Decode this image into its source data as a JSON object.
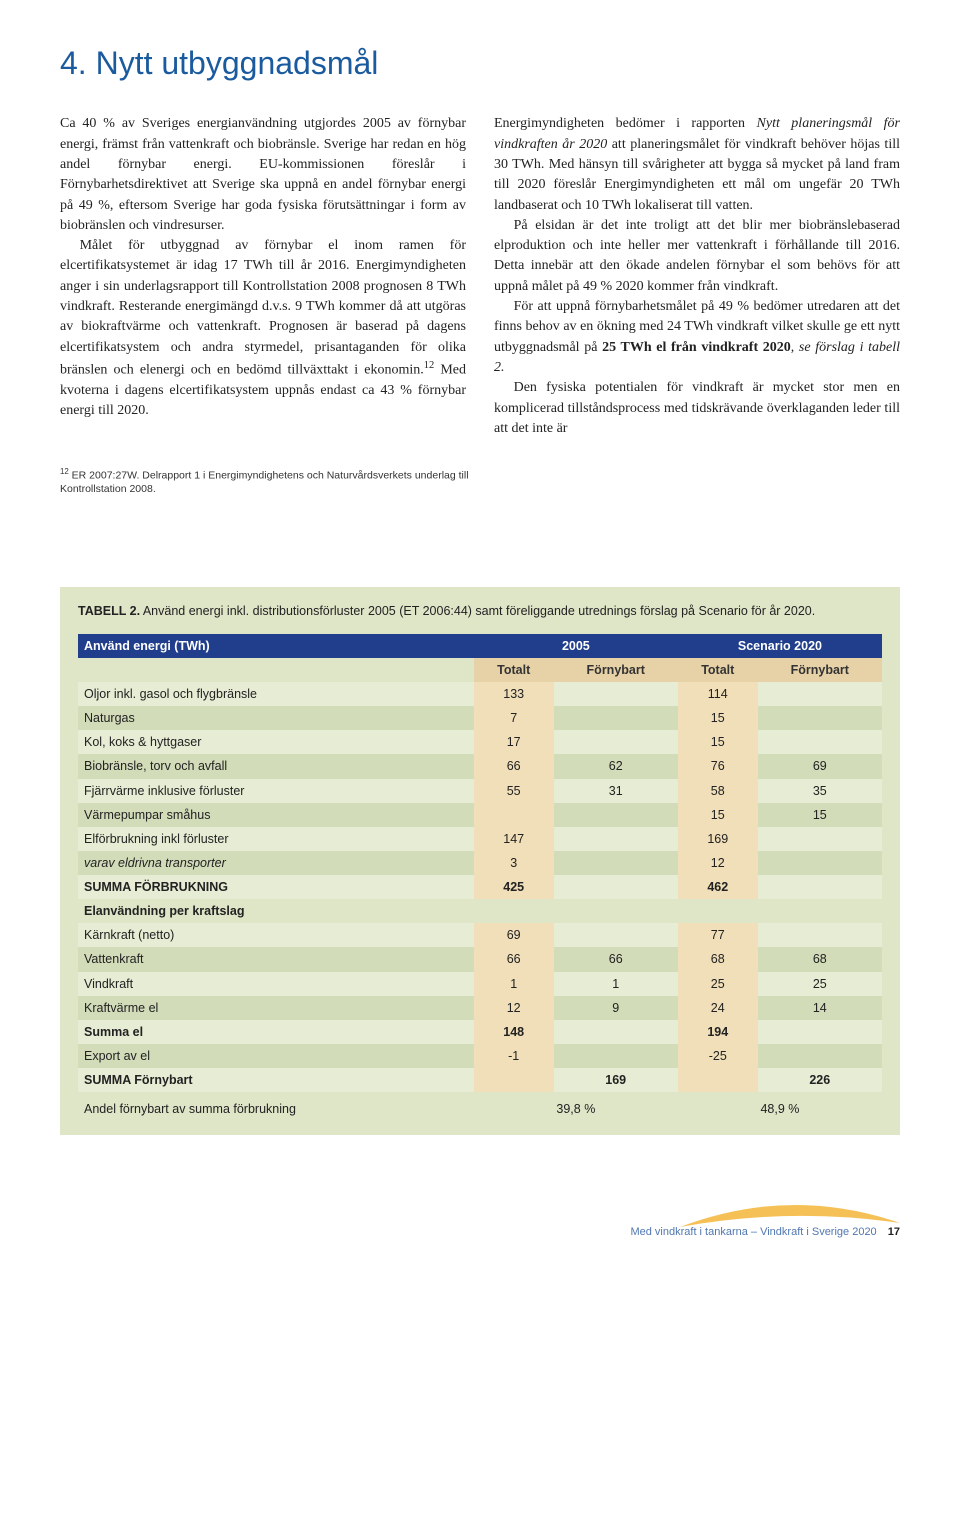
{
  "title": "4. Nytt utbyggnadsmål",
  "left_col": {
    "p1a": "Ca 40 % av Sveriges energianvändning utgjordes 2005 av förnybar energi, främst från vattenkraft och biobränsle. Sverige har redan en hög andel förnybar energi. EU-kommissionen föreslår i Förnybarhetsdirektivet att Sverige ska uppnå en andel förnybar energi på 49 %, eftersom Sverige har goda fysiska förutsättningar i form av biobränslen och vindresurser.",
    "p1b": "Målet för utbyggnad av förnybar el inom ramen för elcertifikatsystemet är idag 17 TWh till år 2016. Energimyndigheten anger i sin underlagsrapport till Kontrollstation 2008 prognosen 8 TWh vindkraft. Resterande energimängd d.v.s. 9 TWh kommer då att utgöras av biokraftvärme och vattenkraft. Prognosen är baserad på dagens elcertifikatsystem och andra styrmedel, prisantaganden för olika bränslen och elenergi och en bedömd tillväxttakt i ekonomin.",
    "p1c": " Med kvoterna i dagens elcertifikatsystem uppnås endast ca 43 % förnybar energi till 2020."
  },
  "right_col": {
    "p1a": "Energimyndigheten bedömer i rapporten ",
    "p1i": "Nytt planeringsmål för vindkraften år 2020",
    "p1b": " att planeringsmålet för vindkraft behöver höjas till 30 TWh. Med hänsyn till svårigheter att bygga så mycket på land fram till 2020 föreslår Energimyndigheten ett mål om ungefär 20 TWh landbaserat och 10 TWh lokaliserat till vatten.",
    "p2": "På elsidan är det inte troligt att det blir mer biobränslebaserad elproduktion och inte heller mer vattenkraft i förhållande till 2016. Detta innebär att den ökade andelen förnybar el som behövs för att uppnå målet på 49 % 2020 kommer från vindkraft.",
    "p3a": "För att uppnå förnybarhetsmålet på 49 % bedömer utredaren att det finns behov av en ökning med 24 TWh vindkraft vilket skulle ge ett nytt utbyggnadsmål på ",
    "p3b": "25 TWh el från vindkraft 2020",
    "p3c": ", ",
    "p3i": "se förslag i tabell 2.",
    "p4": "Den fysiska potentialen för vindkraft är mycket stor men en komplicerad tillståndsprocess med tidskrävande överklaganden leder till att det inte är"
  },
  "footnote": {
    "num": "12",
    "text": " ER 2007:27W. Delrapport 1 i Energimyndighetens och Naturvårdsverkets underlag till Kontrollstation 2008."
  },
  "table": {
    "caption_label": "TABELL 2.",
    "caption_text": " Använd energi inkl. distributionsförluster 2005 (ET 2006:44) samt föreliggande utrednings förslag på Scenario för år 2020.",
    "header_rowlabel": "Använd energi (TWh)",
    "header_year1": "2005",
    "header_year2": "Scenario 2020",
    "sub_totalt": "Totalt",
    "sub_fornybart": "Förnybart",
    "rows": [
      {
        "label": "Oljor inkl. gasol och flygbränsle",
        "t1": "133",
        "f1": "",
        "t2": "114",
        "f2": ""
      },
      {
        "label": "Naturgas",
        "t1": "7",
        "f1": "",
        "t2": "15",
        "f2": ""
      },
      {
        "label": "Kol, koks & hyttgaser",
        "t1": "17",
        "f1": "",
        "t2": "15",
        "f2": ""
      },
      {
        "label": "Biobränsle, torv och avfall",
        "t1": "66",
        "f1": "62",
        "t2": "76",
        "f2": "69"
      },
      {
        "label": "Fjärrvärme inklusive förluster",
        "t1": "55",
        "f1": "31",
        "t2": "58",
        "f2": "35"
      },
      {
        "label": "Värmepumpar småhus",
        "t1": "",
        "f1": "",
        "t2": "15",
        "f2": "15"
      },
      {
        "label": "Elförbrukning inkl förluster",
        "t1": "147",
        "f1": "",
        "t2": "169",
        "f2": ""
      },
      {
        "label": "varav eldrivna transporter",
        "t1": "3",
        "f1": "",
        "t2": "12",
        "f2": "",
        "italic": true
      },
      {
        "label": "SUMMA FÖRBRUKNING",
        "t1": "425",
        "f1": "",
        "t2": "462",
        "f2": "",
        "bold": true
      }
    ],
    "section_label": "Elanvändning per kraftslag",
    "rows2": [
      {
        "label": "Kärnkraft (netto)",
        "t1": "69",
        "f1": "",
        "t2": "77",
        "f2": ""
      },
      {
        "label": "Vattenkraft",
        "t1": "66",
        "f1": "66",
        "t2": "68",
        "f2": "68"
      },
      {
        "label": "Vindkraft",
        "t1": "1",
        "f1": "1",
        "t2": "25",
        "f2": "25"
      },
      {
        "label": "Kraftvärme el",
        "t1": "12",
        "f1": "9",
        "t2": "24",
        "f2": "14"
      },
      {
        "label": "Summa el",
        "t1": "148",
        "f1": "",
        "t2": "194",
        "f2": "",
        "bold": true
      },
      {
        "label": "Export av el",
        "t1": "-1",
        "f1": "",
        "t2": "-25",
        "f2": ""
      },
      {
        "label": "SUMMA Förnybart",
        "t1": "",
        "f1": "169",
        "t2": "",
        "f2": "226",
        "bold": true
      }
    ],
    "pct_label": "Andel förnybart av summa förbrukning",
    "pct_v1": "39,8 %",
    "pct_v2": "48,9 %"
  },
  "footer": {
    "text": "Med vindkraft i tankarna – Vindkraft i Sverige 2020",
    "page": "17",
    "swoosh_color": "#f3b63a"
  },
  "colors": {
    "heading": "#1a5a9e",
    "table_bg": "#dfe6c8",
    "header_bg": "#203e8c",
    "sub_bg": "#e7d2a8",
    "total_col": "#f0dfb8",
    "row_odd": "#e7edd4",
    "row_even": "#d2dcb9"
  }
}
